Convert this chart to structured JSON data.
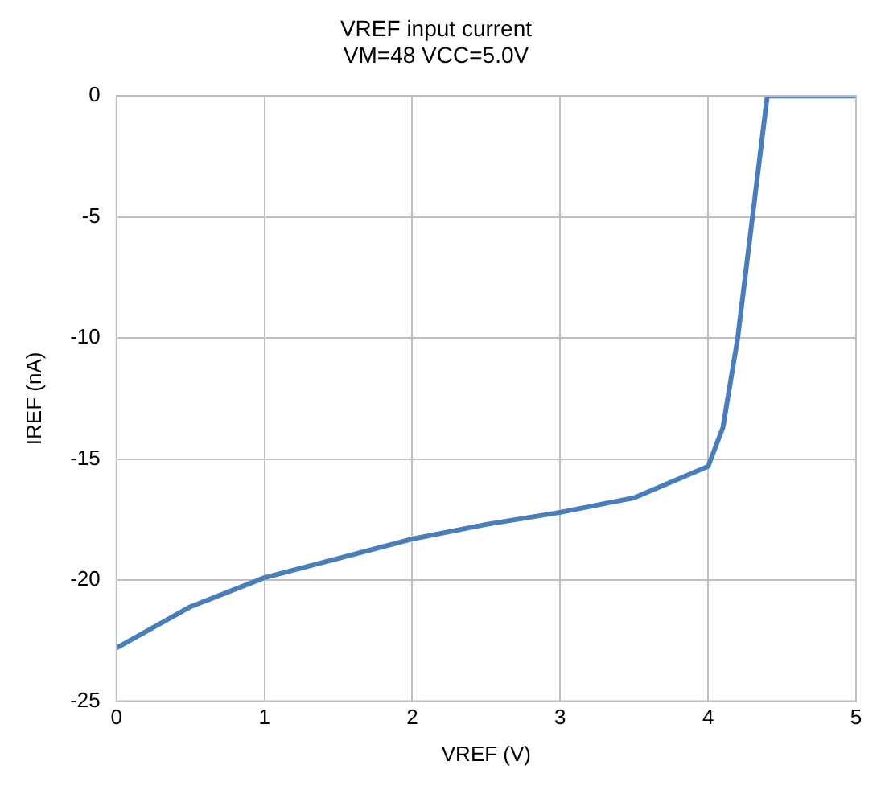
{
  "chart_data": {
    "type": "line",
    "title": [
      "VREF input current",
      "VM=48 VCC=5.0V"
    ],
    "xlabel": "VREF (V)",
    "ylabel": "IREF (nA)",
    "series": [
      {
        "color": "#4a7ebb",
        "x": [
          0,
          0.5,
          1,
          1.5,
          2,
          2.5,
          3,
          3.5,
          4,
          4.1,
          4.2,
          4.3,
          4.4,
          5
        ],
        "values": [
          -22.8,
          -21.1,
          -19.9,
          -19.1,
          -18.3,
          -17.7,
          -17.2,
          -16.6,
          -15.3,
          -13.7,
          -10,
          -5,
          0,
          0
        ]
      }
    ],
    "xlim": [
      0,
      5
    ],
    "xticks": [
      0,
      1,
      2,
      3,
      4,
      5
    ],
    "ylim": [
      -25,
      0
    ],
    "yticks": [
      -25,
      -20,
      -15,
      -10,
      -5,
      0
    ],
    "grid": true,
    "legend": false,
    "marker": "none",
    "line_style": "solid"
  }
}
